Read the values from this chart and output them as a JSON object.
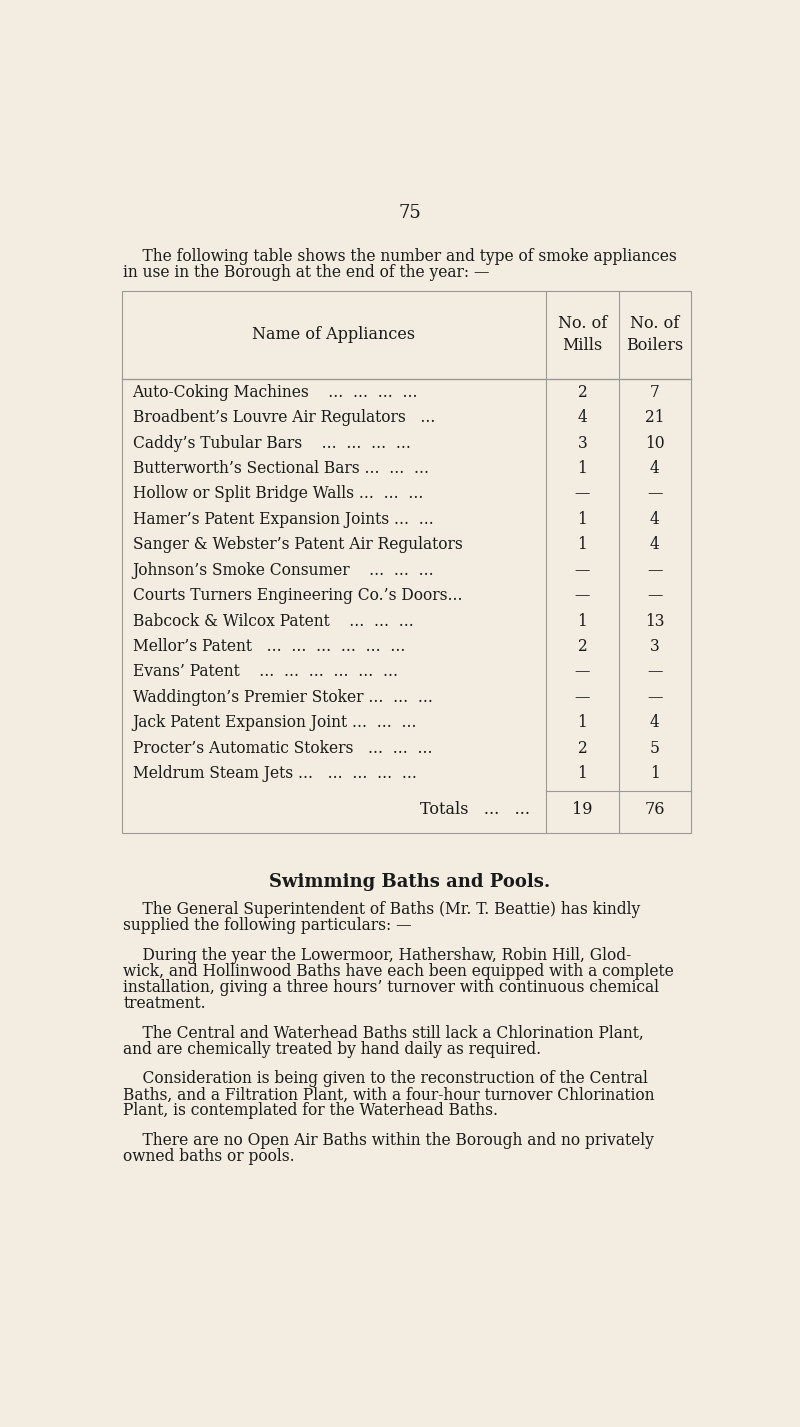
{
  "page_number": "75",
  "bg_color": "#f2ede0",
  "text_color": "#1a1a1a",
  "intro_line1": "    The following table shows the number and type of smoke appliances",
  "intro_line2": "in use in the Borough at the end of the year: —",
  "table_header": [
    "Name of Appliances",
    "No. of\nMills",
    "No. of\nBoilers"
  ],
  "table_rows": [
    [
      "Auto-Coking Machines    ...  ...  ...  ...",
      "2",
      "7"
    ],
    [
      "Broadbent’s Louvre Air Regulators   ...",
      "4",
      "21"
    ],
    [
      "Caddy’s Tubular Bars    ...  ...  ...  ...",
      "3",
      "10"
    ],
    [
      "Butterworth’s Sectional Bars ...  ...  ...",
      "1",
      "4"
    ],
    [
      "Hollow or Split Bridge Walls ...  ...  ...",
      "—",
      "—"
    ],
    [
      "Hamer’s Patent Expansion Joints ...  ...",
      "1",
      "4"
    ],
    [
      "Sanger & Webster’s Patent Air Regulators",
      "1",
      "4"
    ],
    [
      "Johnson’s Smoke Consumer    ...  ...  ...",
      "—",
      "—"
    ],
    [
      "Courts Turners Engineering Co.’s Doors...",
      "—",
      "—"
    ],
    [
      "Babcock & Wilcox Patent    ...  ...  ...",
      "1",
      "13"
    ],
    [
      "Mellor’s Patent   ...  ...  ...  ...  ...  ...",
      "2",
      "3"
    ],
    [
      "Evans’ Patent    ...  ...  ...  ...  ...  ...",
      "—",
      "—"
    ],
    [
      "Waddington’s Premier Stoker ...  ...  ...",
      "—",
      "—"
    ],
    [
      "Jack Patent Expansion Joint ...  ...  ...",
      "1",
      "4"
    ],
    [
      "Procter’s Automatic Stokers   ...  ...  ...",
      "2",
      "5"
    ],
    [
      "Meldrum Steam Jets ...   ...  ...  ...  ...",
      "1",
      "1"
    ]
  ],
  "totals_label": "Totals   ...   ...",
  "totals_mills": "19",
  "totals_boilers": "76",
  "section_title": "Swimming Baths and Pools.",
  "para1_indent": "    The General Superintendent of Baths (Mr. T. Beattie) has kindly",
  "para1_cont": "supplied the following particulars: —",
  "para2_indent": "    During the year the Lowermoor, Hathershaw, Robin Hill, Glod-",
  "para2_line2": "wick, and Hollinwood Baths have each been equipped with a complete",
  "para2_line3": "installation, giving a three hours’ turnover with continuous chemical",
  "para2_line4": "treatment.",
  "para3_indent": "    The Central and Waterhead Baths still lack a Chlorination Plant,",
  "para3_cont": "and are chemically treated by hand daily as required.",
  "para4_indent": "    Consideration is being given to the reconstruction of the Central",
  "para4_line2": "Baths, and a Filtration Plant, with a four-hour turnover Chlorination",
  "para4_line3": "Plant, is contemplated for the Waterhead Baths.",
  "para5_indent": "    There are no Open Air Baths within the Borough and no privately",
  "para5_cont": "owned baths or pools."
}
